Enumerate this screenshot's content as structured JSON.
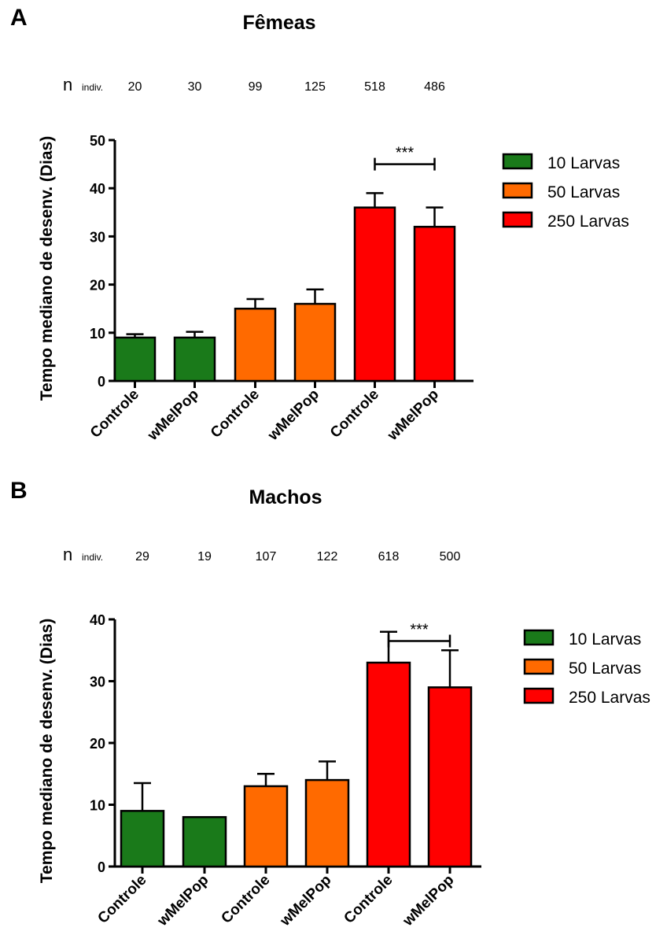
{
  "chart_data": [
    {
      "panel": "A",
      "type": "bar",
      "title": "Fêmeas",
      "ylabel": "Tempo mediano de desenv. (Dias)",
      "ylim": [
        0,
        50
      ],
      "yticks": [
        0,
        10,
        20,
        30,
        40,
        50
      ],
      "n_label": "n",
      "n_sublabel": "indiv.",
      "n_values": [
        "20",
        "30",
        "99",
        "125",
        "518",
        "486"
      ],
      "categories": [
        "Controle",
        "wMelPop",
        "Controle",
        "wMelPop",
        "Controle",
        "wMelPop"
      ],
      "values": [
        9,
        9,
        15,
        16,
        36,
        32
      ],
      "errors": [
        0.7,
        1.2,
        2,
        3,
        3,
        4
      ],
      "groups": [
        0,
        0,
        1,
        1,
        2,
        2
      ],
      "series": [
        {
          "name": "10 Larvas",
          "color": "#1a7a1a"
        },
        {
          "name": "50 Larvas",
          "color": "#ff6a00"
        },
        {
          "name": "250 Larvas",
          "color": "#ff0000"
        }
      ],
      "significance": {
        "from": 4,
        "to": 5,
        "label": "***",
        "y": 45
      }
    },
    {
      "panel": "B",
      "type": "bar",
      "title": "Machos",
      "ylabel": "Tempo mediano de desenv. (Dias)",
      "ylim": [
        0,
        40
      ],
      "yticks": [
        0,
        10,
        20,
        30,
        40
      ],
      "n_label": "n",
      "n_sublabel": "indiv.",
      "n_values": [
        "29",
        "19",
        "107",
        "122",
        "618",
        "500"
      ],
      "categories": [
        "Controle",
        "wMelPop",
        "Controle",
        "wMelPop",
        "Controle",
        "wMelPop"
      ],
      "values": [
        9,
        8,
        13,
        14,
        33,
        29
      ],
      "errors": [
        4.5,
        0,
        2,
        3,
        5,
        6
      ],
      "groups": [
        0,
        0,
        1,
        1,
        2,
        2
      ],
      "series": [
        {
          "name": "10 Larvas",
          "color": "#1a7a1a"
        },
        {
          "name": "50 Larvas",
          "color": "#ff6a00"
        },
        {
          "name": "250 Larvas",
          "color": "#ff0000"
        }
      ],
      "significance": {
        "from": 4,
        "to": 5,
        "label": "***",
        "y": 36.5
      }
    }
  ]
}
